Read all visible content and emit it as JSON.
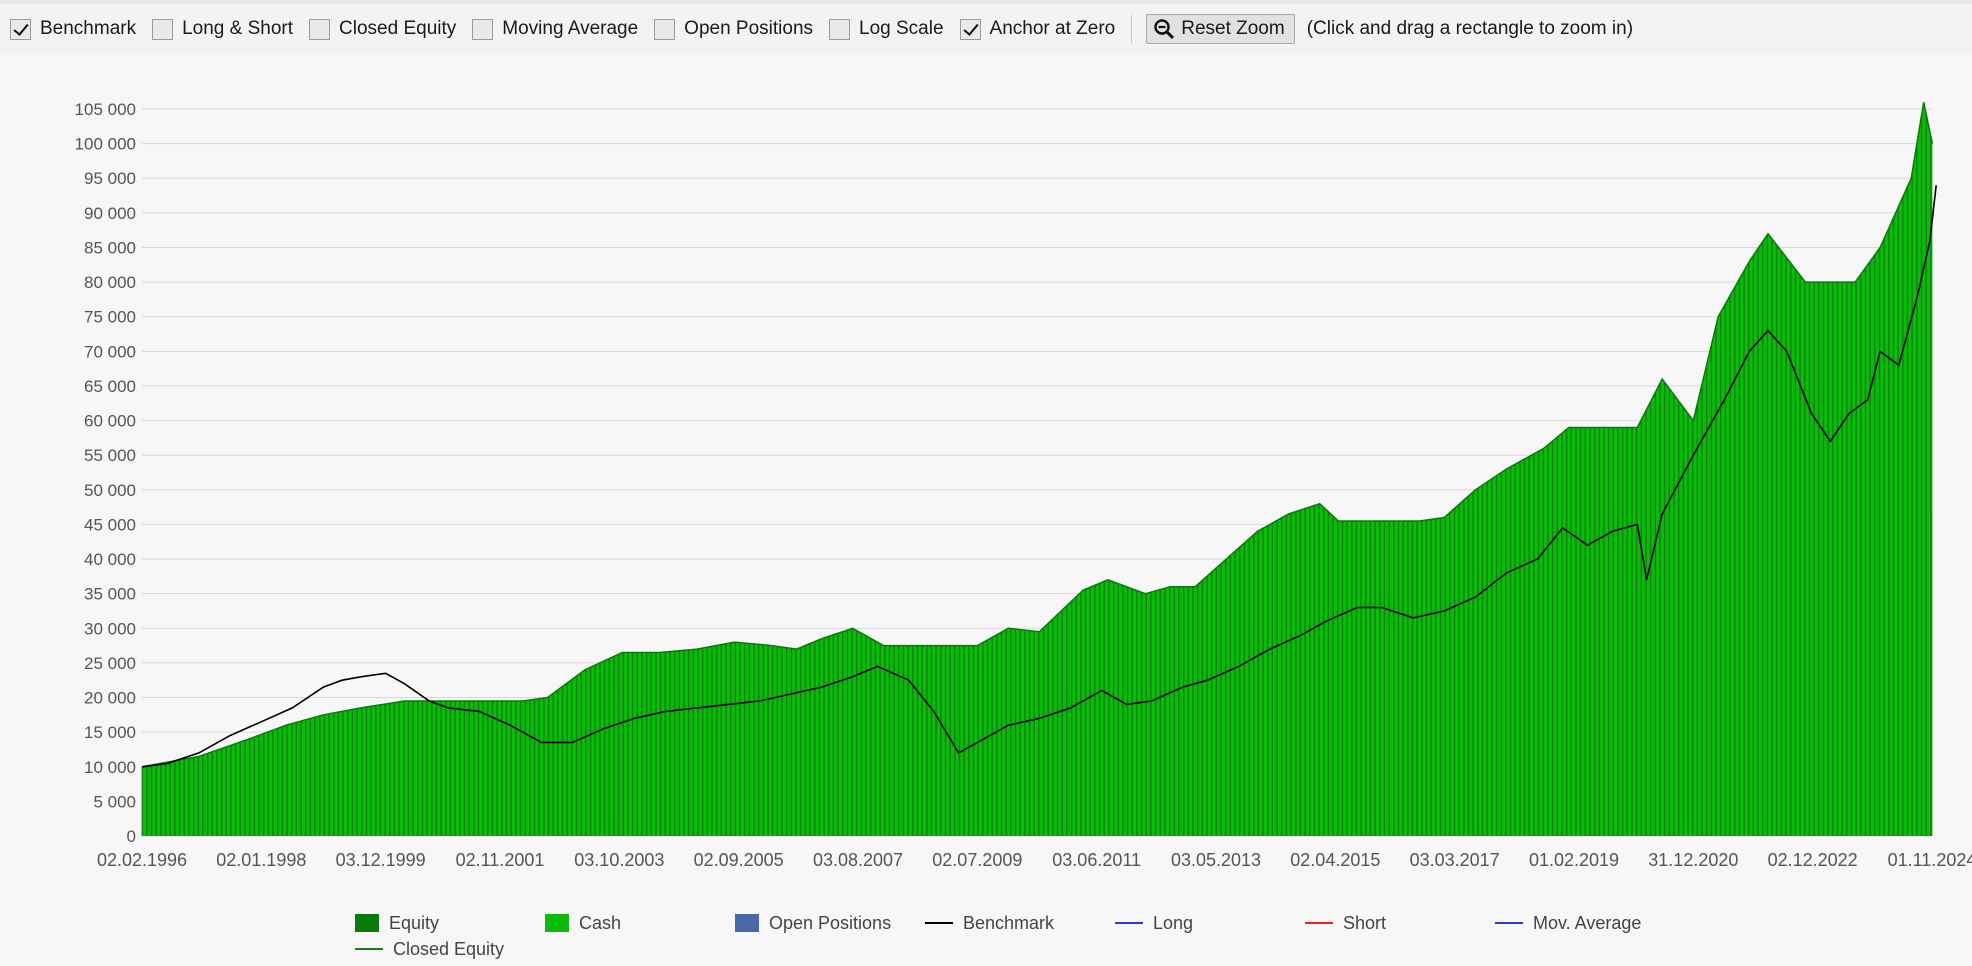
{
  "toolbar": {
    "checkboxes": [
      {
        "label": "Benchmark",
        "checked": true
      },
      {
        "label": "Long & Short",
        "checked": false
      },
      {
        "label": "Closed Equity",
        "checked": false
      },
      {
        "label": "Moving Average",
        "checked": false
      },
      {
        "label": "Open Positions",
        "checked": false
      },
      {
        "label": "Log Scale",
        "checked": false
      },
      {
        "label": "Anchor at Zero",
        "checked": true
      }
    ],
    "reset_zoom_label": "Reset Zoom",
    "hint": "(Click and drag a rectangle to zoom in)"
  },
  "colors": {
    "equity": "#0a7a0a",
    "cash": "#0abb0a",
    "open_positions": "#4a67a8",
    "benchmark": "#000000",
    "long": "#2a3ad8",
    "short": "#e02828",
    "mov_average": "#2a3ad8",
    "closed_equity": "#1f7a1f",
    "grid": "#d9d9d9"
  },
  "legend": [
    {
      "label": "Equity",
      "kind": "swatch",
      "color_key": "equity"
    },
    {
      "label": "Cash",
      "kind": "swatch",
      "color_key": "cash"
    },
    {
      "label": "Open Positions",
      "kind": "swatch",
      "color_key": "open_positions"
    },
    {
      "label": "Benchmark",
      "kind": "line",
      "color_key": "benchmark"
    },
    {
      "label": "Long",
      "kind": "line",
      "color_key": "long"
    },
    {
      "label": "Short",
      "kind": "line",
      "color_key": "short"
    },
    {
      "label": "Mov. Average",
      "kind": "line",
      "color_key": "mov_average"
    },
    {
      "label": "Closed Equity",
      "kind": "line",
      "color_key": "closed_equity"
    }
  ],
  "chart_data": {
    "type": "area",
    "title": "",
    "xlabel": "",
    "ylabel": "",
    "ylim": [
      0,
      105000
    ],
    "y_ticks": [
      0,
      5000,
      10000,
      15000,
      20000,
      25000,
      30000,
      35000,
      40000,
      45000,
      50000,
      55000,
      60000,
      65000,
      70000,
      75000,
      80000,
      85000,
      90000,
      95000,
      100000,
      105000
    ],
    "y_tick_labels": [
      "0",
      "5 000",
      "10 000",
      "15 000",
      "20 000",
      "25 000",
      "30 000",
      "35 000",
      "40 000",
      "45 000",
      "50 000",
      "55 000",
      "60 000",
      "65 000",
      "70 000",
      "75 000",
      "80 000",
      "85 000",
      "90 000",
      "95 000",
      "100 000",
      "105 000"
    ],
    "x_range": [
      "1996-02-02",
      "2024-11-01"
    ],
    "x_tick_labels": [
      "02.02.1996",
      "02.01.1998",
      "03.12.1999",
      "02.11.2001",
      "03.10.2003",
      "02.09.2005",
      "03.08.2007",
      "02.07.2009",
      "03.06.2011",
      "03.05.2013",
      "02.04.2015",
      "03.03.2017",
      "01.02.2019",
      "31.12.2020",
      "02.12.2022",
      "01.11.2024"
    ],
    "grid": true,
    "legend_position": "bottom",
    "series": [
      {
        "name": "Equity",
        "x": [
          1996.09,
          1997.0,
          1997.8,
          1998.4,
          1999.0,
          1999.6,
          2000.3,
          2001.0,
          2001.8,
          2002.2,
          2002.6,
          2003.2,
          2003.8,
          2004.4,
          2005.0,
          2005.6,
          2006.2,
          2006.6,
          2007.0,
          2007.5,
          2008.0,
          2008.7,
          2009.5,
          2010.0,
          2010.5,
          2011.2,
          2011.6,
          2012.2,
          2012.6,
          2013.0,
          2013.5,
          2014.0,
          2014.5,
          2015.0,
          2015.3,
          2016.0,
          2016.6,
          2017.0,
          2017.5,
          2018.0,
          2018.6,
          2019.0,
          2019.6,
          2020.1,
          2020.5,
          2021.0,
          2021.4,
          2021.9,
          2022.2,
          2022.8,
          2023.3,
          2023.6,
          2024.0,
          2024.5,
          2024.7,
          2024.84
        ],
        "values": [
          10000,
          11500,
          14000,
          16000,
          17500,
          18500,
          19500,
          19500,
          19500,
          19500,
          20000,
          24000,
          26500,
          26500,
          27000,
          28000,
          27500,
          27000,
          28500,
          30000,
          27500,
          27500,
          27500,
          30000,
          29500,
          35500,
          37000,
          35000,
          36000,
          36000,
          40000,
          44000,
          46500,
          48000,
          45500,
          45500,
          45500,
          46000,
          50000,
          53000,
          56000,
          59000,
          59000,
          59000,
          66000,
          60000,
          75000,
          83000,
          87000,
          80000,
          80000,
          80000,
          85000,
          95000,
          106000,
          100000
        ]
      },
      {
        "name": "Benchmark",
        "x": [
          1996.09,
          1996.5,
          1997.0,
          1997.5,
          1998.0,
          1998.5,
          1999.0,
          1999.3,
          1999.6,
          2000.0,
          2000.3,
          2000.7,
          2001.0,
          2001.5,
          2002.0,
          2002.5,
          2003.0,
          2003.5,
          2004.0,
          2004.5,
          2005.0,
          2005.5,
          2006.0,
          2006.5,
          2007.0,
          2007.5,
          2007.9,
          2008.4,
          2008.8,
          2009.2,
          2009.6,
          2010.0,
          2010.5,
          2011.0,
          2011.5,
          2011.9,
          2012.3,
          2012.8,
          2013.2,
          2013.7,
          2014.2,
          2014.7,
          2015.1,
          2015.6,
          2016.0,
          2016.5,
          2017.0,
          2017.5,
          2018.0,
          2018.5,
          2018.9,
          2019.3,
          2019.7,
          2020.1,
          2020.25,
          2020.5,
          2021.0,
          2021.5,
          2021.9,
          2022.2,
          2022.5,
          2022.9,
          2023.2,
          2023.5,
          2023.8,
          2024.0,
          2024.3,
          2024.6,
          2024.8,
          2024.9
        ],
        "values": [
          10000,
          10500,
          12000,
          14500,
          16500,
          18500,
          21500,
          22500,
          23000,
          23500,
          22000,
          19500,
          18500,
          18000,
          16000,
          13500,
          13500,
          15500,
          17000,
          18000,
          18500,
          19000,
          19500,
          20500,
          21500,
          23000,
          24500,
          22500,
          18000,
          12000,
          14000,
          16000,
          17000,
          18500,
          21000,
          19000,
          19500,
          21500,
          22500,
          24500,
          27000,
          29000,
          31000,
          33000,
          33000,
          31500,
          32500,
          34500,
          38000,
          40000,
          44500,
          42000,
          44000,
          45000,
          37000,
          46500,
          55000,
          63000,
          70000,
          73000,
          70000,
          61000,
          57000,
          61000,
          63000,
          70000,
          68000,
          78000,
          86000,
          94000
        ]
      }
    ]
  }
}
